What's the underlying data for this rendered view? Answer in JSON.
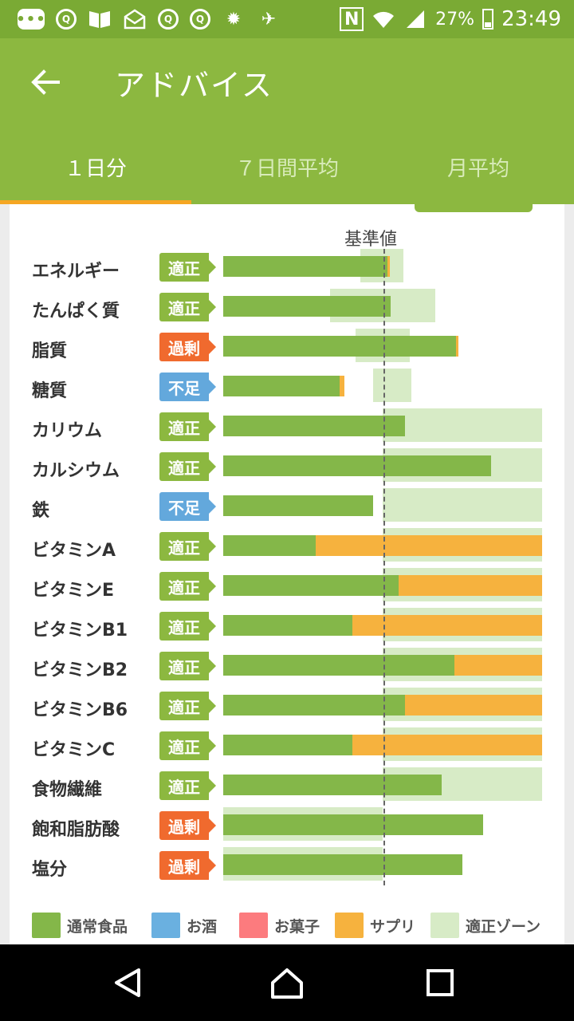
{
  "status_bar": {
    "battery": "27%",
    "time": "23:49"
  },
  "app_bar": {
    "title": "アドバイス"
  },
  "tabs": [
    {
      "label": "１日分",
      "active": true
    },
    {
      "label": "７日間平均",
      "active": false
    },
    {
      "label": "月平均",
      "active": false
    }
  ],
  "chart": {
    "reference_label": "基準値"
  },
  "chart_data": {
    "type": "bar",
    "orientation": "horizontal",
    "stacked": true,
    "reference_line_label": "基準値",
    "categories": [
      "エネルギー",
      "たんぱく質",
      "脂質",
      "糖質",
      "カリウム",
      "カルシウム",
      "鉄",
      "ビタミンA",
      "ビタミンE",
      "ビタミンB1",
      "ビタミンB2",
      "ビタミンB6",
      "ビタミンC",
      "食物繊維",
      "飽和脂肪酸",
      "塩分"
    ],
    "status": [
      "適正",
      "適正",
      "過剰",
      "不足",
      "適正",
      "適正",
      "不足",
      "適正",
      "適正",
      "適正",
      "適正",
      "適正",
      "適正",
      "適正",
      "過剰",
      "過剰"
    ],
    "status_kind": [
      "ok",
      "ok",
      "over",
      "under",
      "ok",
      "ok",
      "under",
      "ok",
      "ok",
      "ok",
      "ok",
      "ok",
      "ok",
      "ok",
      "over",
      "over"
    ],
    "series": [
      {
        "name": "通常食品",
        "values": [
          1.03,
          1.05,
          1.46,
          0.73,
          1.14,
          1.68,
          0.94,
          0.58,
          1.1,
          0.81,
          1.45,
          1.14,
          0.81,
          1.37,
          1.63,
          1.5
        ]
      },
      {
        "name": "お酒",
        "values": [
          0,
          0,
          0,
          0,
          0,
          0,
          0,
          0,
          0,
          0,
          0,
          0,
          0,
          0,
          0,
          0
        ]
      },
      {
        "name": "お菓子",
        "values": [
          0,
          0,
          0,
          0,
          0,
          0,
          0,
          0,
          0,
          0,
          0,
          0,
          0,
          0,
          0,
          0
        ]
      },
      {
        "name": "サプリ",
        "values": [
          0.01,
          0,
          0.01,
          0.03,
          0,
          0,
          0,
          1.42,
          0.9,
          1.19,
          0.55,
          0.86,
          1.19,
          0,
          0,
          0
        ]
      }
    ],
    "optimal_zone": [
      [
        0.86,
        1.13
      ],
      [
        0.67,
        1.33
      ],
      [
        0.83,
        1.17
      ],
      [
        0.94,
        1.18
      ],
      [
        1.0,
        2.0
      ],
      [
        1.0,
        2.0
      ],
      [
        1.0,
        2.0
      ],
      [
        1.0,
        2.0
      ],
      [
        1.0,
        2.0
      ],
      [
        1.0,
        2.0
      ],
      [
        1.0,
        2.0
      ],
      [
        1.0,
        2.0
      ],
      [
        1.0,
        2.0
      ],
      [
        1.0,
        2.0
      ],
      [
        0,
        1.0
      ],
      [
        0,
        1.0
      ]
    ],
    "xlim": [
      0,
      2.0
    ],
    "reference_value": 1.0
  },
  "legend": [
    {
      "label": "通常食品",
      "color": "#84b749"
    },
    {
      "label": "お酒",
      "color": "#6ab0e0"
    },
    {
      "label": "お菓子",
      "color": "#fc7b7e"
    },
    {
      "label": "サプリ",
      "color": "#f6b23e"
    },
    {
      "label": "適正ゾーン",
      "color": "#d7ebc6"
    }
  ]
}
